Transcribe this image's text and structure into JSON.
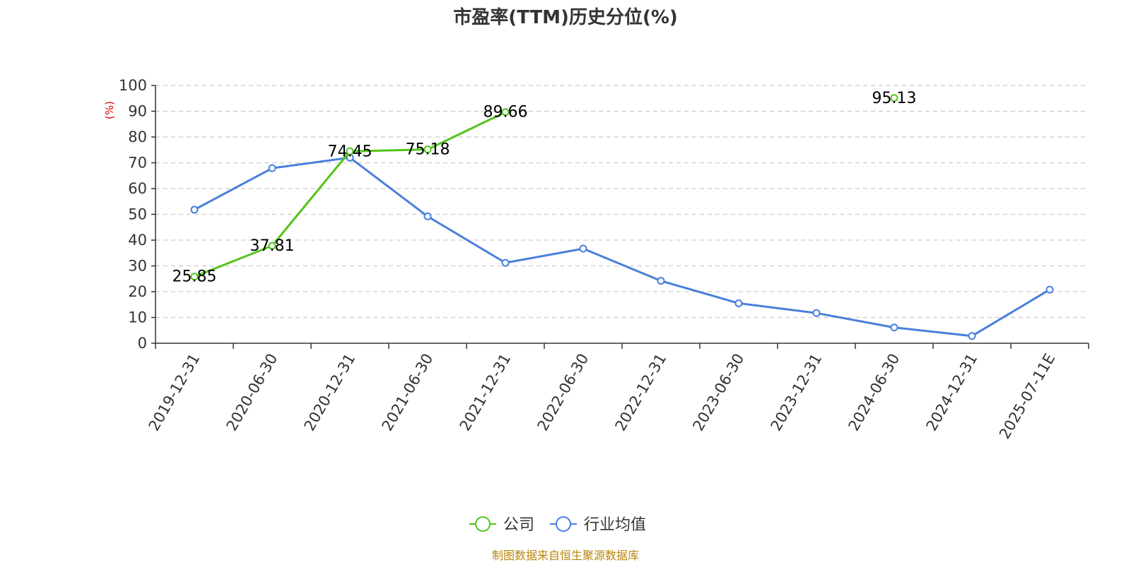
{
  "chart_data": {
    "type": "line",
    "title": "市盈率(TTM)历史分位(%)",
    "ylabel": "(%)",
    "ylim": [
      0,
      100
    ],
    "yticks": [
      0,
      10,
      20,
      30,
      40,
      50,
      60,
      70,
      80,
      90,
      100
    ],
    "grid": true,
    "legend_position": "bottom-center",
    "categories": [
      "2019-12-31",
      "2020-06-30",
      "2020-12-31",
      "2021-06-30",
      "2021-12-31",
      "2022-06-30",
      "2022-12-31",
      "2023-06-30",
      "2023-12-31",
      "2024-06-30",
      "2024-12-31",
      "2025-07-11E"
    ],
    "series": [
      {
        "name": "公司",
        "color": "#52c41a",
        "values": [
          25.85,
          37.81,
          74.45,
          75.18,
          89.66,
          null,
          null,
          null,
          null,
          95.13,
          null,
          null
        ],
        "value_labels": [
          "25.85",
          "37.81",
          "74.45",
          "75.18",
          "89.66",
          null,
          null,
          null,
          null,
          "95.13",
          null,
          null
        ]
      },
      {
        "name": "行业均值",
        "color": "#4a7fdc",
        "values": [
          51.8,
          67.9,
          72.0,
          49.2,
          31.2,
          36.7,
          24.2,
          15.5,
          11.7,
          6.1,
          2.8,
          20.8
        ]
      }
    ],
    "source": "制图数据来自恒生聚源数据库"
  }
}
